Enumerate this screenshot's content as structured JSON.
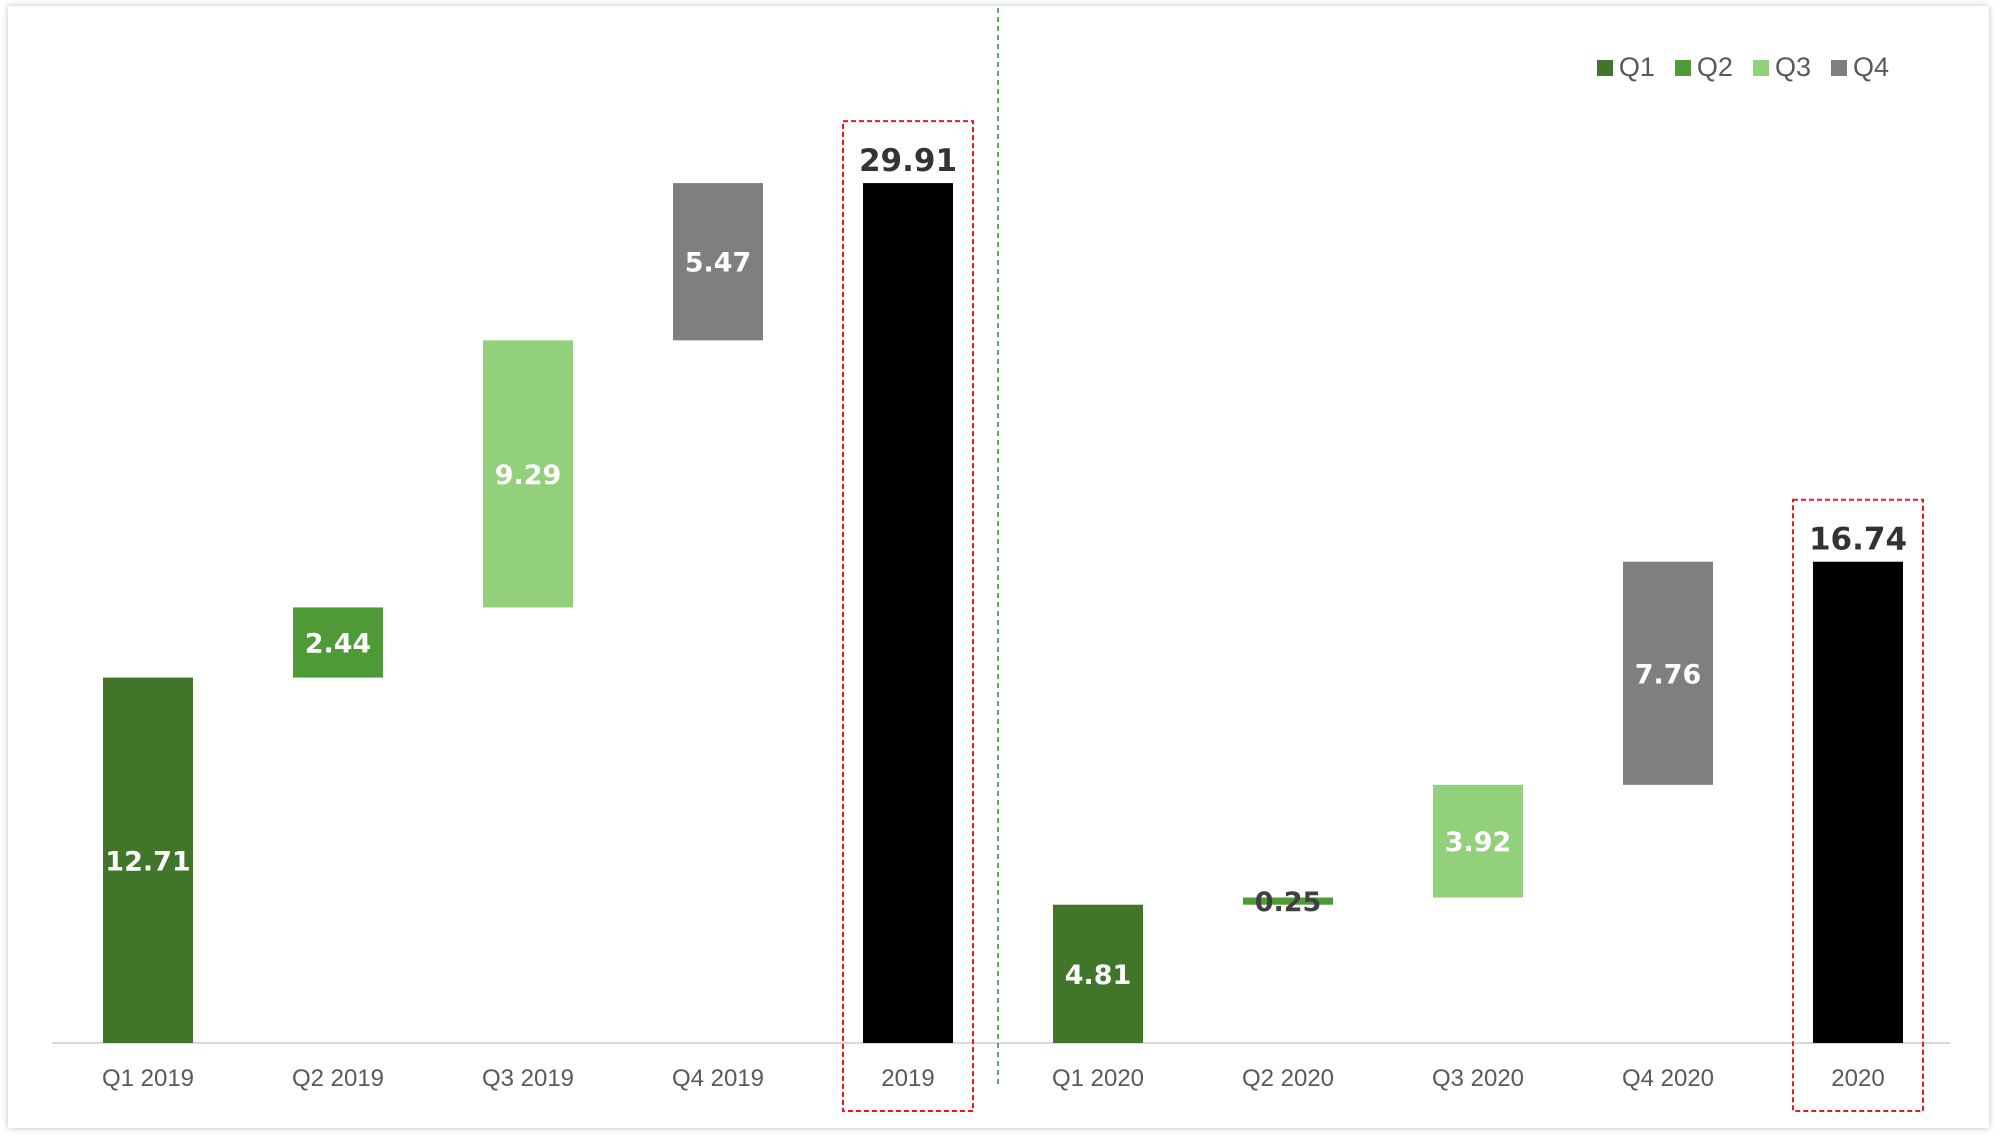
{
  "chart_data": {
    "type": "bar",
    "subtype": "waterfall",
    "categories": [
      "Q1 2019",
      "Q2 2019",
      "Q3 2019",
      "Q4 2019",
      "2019",
      "Q1 2020",
      "Q2 2020",
      "Q3 2020",
      "Q4 2020",
      "2020"
    ],
    "values": [
      12.71,
      2.44,
      9.29,
      5.47,
      29.91,
      4.81,
      0.25,
      3.92,
      7.76,
      16.74
    ],
    "bar_roles": [
      "Q1",
      "Q2",
      "Q3",
      "Q4",
      "total",
      "Q1",
      "Q2",
      "Q3",
      "Q4",
      "total"
    ],
    "value_labels": [
      "12.71",
      "2.44",
      "9.29",
      "5.47",
      "29.91",
      "4.81",
      "0.25",
      "3.92",
      "7.76",
      "16.74"
    ],
    "legend": [
      "Q1",
      "Q2",
      "Q3",
      "Q4"
    ],
    "legend_position": "top-right",
    "ylim": [
      0,
      32
    ],
    "grid": false,
    "title": "",
    "xlabel": "",
    "ylabel": "",
    "highlighted_totals": [
      "2019",
      "2020"
    ],
    "colors": {
      "Q1": "#41762A",
      "Q2": "#4E9A36",
      "Q3": "#92D07C",
      "Q4": "#7F7F7F",
      "total": "#000000",
      "highlight_box": "#E8191E",
      "separator": "#2E8B2E"
    }
  }
}
